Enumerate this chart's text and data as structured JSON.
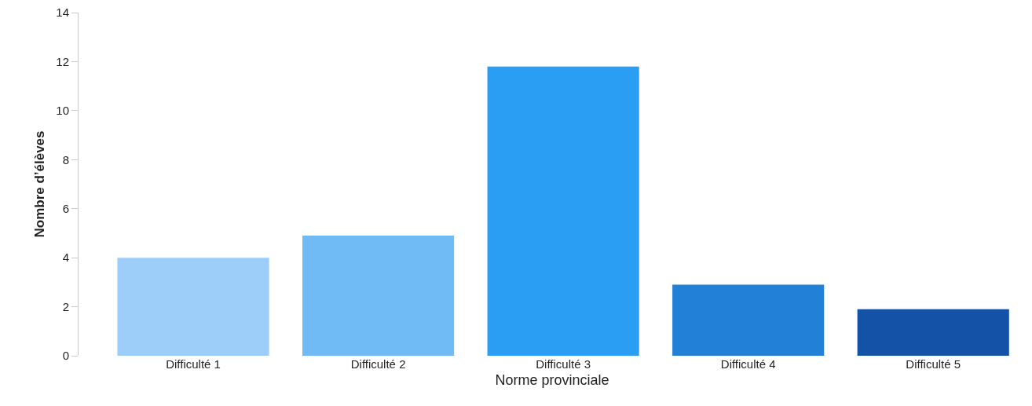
{
  "chart_data": {
    "type": "bar",
    "xlabel": "Norme provinciale",
    "ylabel": "Nombre d’élèves",
    "categories": [
      "Difficulté 1",
      "Difficulté 2",
      "Difficulté 3",
      "Difficulté 4",
      "Difficulté 5"
    ],
    "values": [
      4,
      4.9,
      11.8,
      2.9,
      1.9
    ],
    "colors": [
      "#9dcefa",
      "#70bbf5",
      "#2a9ef2",
      "#2280d6",
      "#1452a8"
    ],
    "ylim": [
      0,
      14
    ],
    "yticks": [
      0,
      2,
      4,
      6,
      8,
      10,
      12,
      14
    ],
    "grid": false,
    "legend": false
  }
}
